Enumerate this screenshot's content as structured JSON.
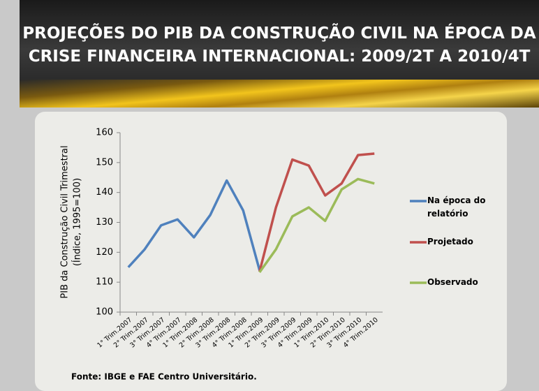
{
  "title": [
    "PROJEÇÕES DO PIB DA CONSTRUÇÃO CIVIL NA ÉPOCA DA",
    "CRISE FINANCEIRA INTERNACIONAL: 2009/2T A 2010/4T"
  ],
  "chart_data": {
    "type": "line",
    "y_label": [
      "PIB  da Construção Civil Trimestral",
      "(Índice, 1995=100)"
    ],
    "categories": [
      "1° Trim.2007",
      "2° Trim.2007",
      "3° Trim.2007",
      "4° Trim.2007",
      "1° Trim.2008",
      "2° Trim.2008",
      "3° Trim.2008",
      "4° Trim.2008",
      "1° Trim.2009",
      "2° Trim.2009",
      "3° Trim.2009",
      "4° Trim.2009",
      "1° Trim.2010",
      "2° Trim.2010",
      "3° Trim.2010",
      "4° Trim.2010"
    ],
    "series": [
      {
        "name": "Na época do relatório",
        "color": "#4f81bd",
        "values": [
          115,
          121,
          129,
          131,
          125,
          132.5,
          144,
          134,
          114,
          null,
          null,
          null,
          null,
          null,
          null,
          null
        ]
      },
      {
        "name": "Projetado",
        "color": "#c0504d",
        "values": [
          null,
          null,
          null,
          null,
          null,
          null,
          null,
          null,
          113.5,
          135,
          151,
          149,
          139,
          143,
          152.5,
          153
        ]
      },
      {
        "name": "Observado",
        "color": "#9bbb59",
        "values": [
          null,
          null,
          null,
          null,
          null,
          null,
          null,
          null,
          113.3,
          121,
          132,
          135,
          130.5,
          141,
          144.5,
          143
        ]
      }
    ],
    "ylim": [
      100,
      160
    ],
    "yticks": [
      100,
      110,
      120,
      130,
      140,
      150,
      160
    ],
    "source": "Fonte: IBGE e FAE Centro Universitário."
  }
}
